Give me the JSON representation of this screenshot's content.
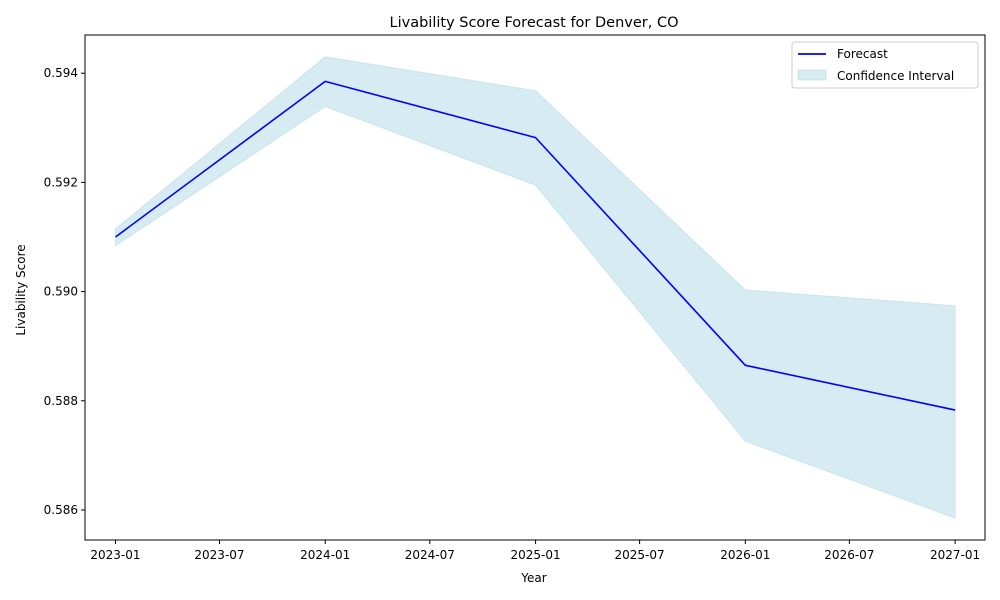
{
  "chart_data": {
    "type": "line",
    "title": "Livability Score Forecast for Denver, CO",
    "xlabel": "Year",
    "ylabel": "Livability Score",
    "x": [
      "2023-01",
      "2024-01",
      "2025-01",
      "2026-01",
      "2027-01"
    ],
    "series": [
      {
        "name": "Forecast",
        "color": "#0000ff",
        "values": [
          0.591,
          0.59385,
          0.59282,
          0.58865,
          0.58783
        ]
      }
    ],
    "band": {
      "name": "Confidence Interval",
      "color": "#add8e6",
      "lower": [
        0.59084,
        0.59339,
        0.59195,
        0.58726,
        0.58585
      ],
      "upper": [
        0.59115,
        0.5943,
        0.59368,
        0.59003,
        0.58974
      ]
    },
    "x_ticks": [
      "2023-01",
      "2023-07",
      "2024-01",
      "2024-07",
      "2025-01",
      "2025-07",
      "2026-01",
      "2026-07",
      "2027-01"
    ],
    "y_ticks": [
      "0.586",
      "0.588",
      "0.590",
      "0.592",
      "0.594"
    ],
    "xlim": [
      "2022-11-09",
      "2027-02-22"
    ],
    "ylim": [
      0.58545,
      0.5947
    ],
    "grid": false,
    "legend_position": "top-right"
  }
}
